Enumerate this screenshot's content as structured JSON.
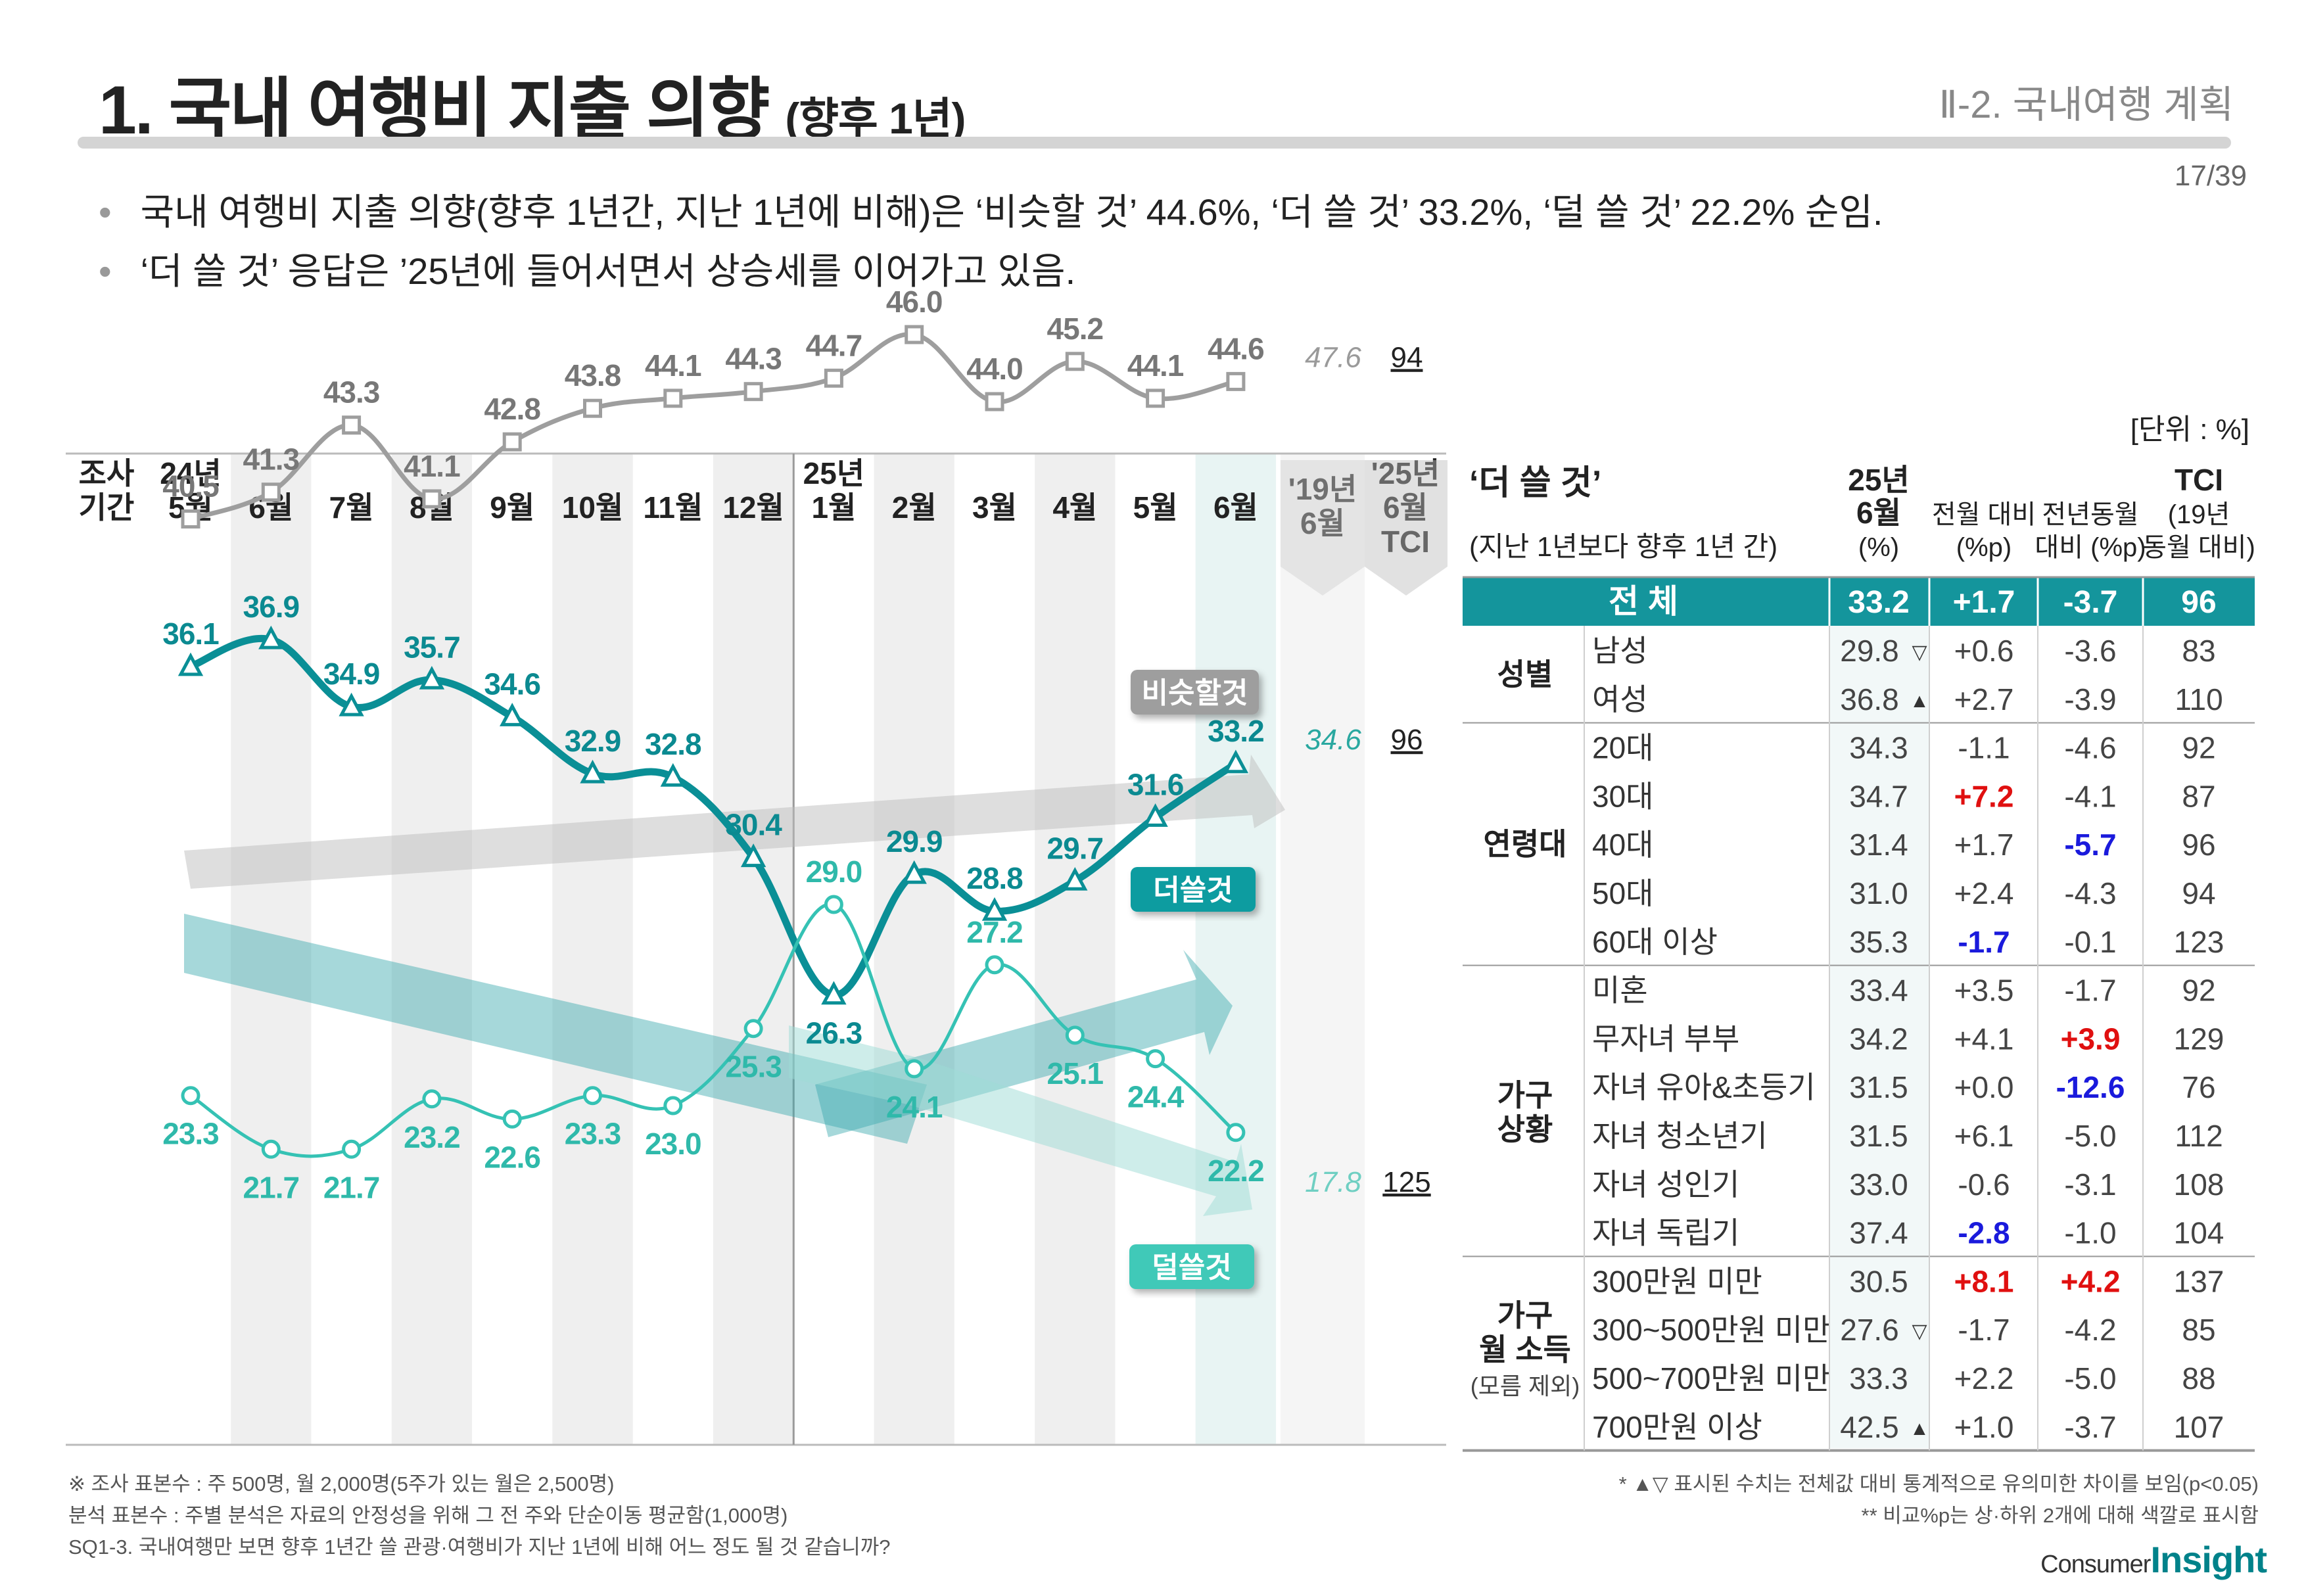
{
  "header": {
    "title": "1. 국내 여행비 지출 의향",
    "title_suffix": "(향후 1년)",
    "section": "Ⅱ-2. 국내여행 계획",
    "page": "17/39"
  },
  "bullets": [
    "국내 여행비 지출 의향(향후 1년간, 지난 1년에 비해)은 ‘비슷할 것’ 44.6%, ‘더 쓸 것’ 33.2%, ‘덜 쓸 것’ 22.2% 순임.",
    "‘더 쓸 것’ 응답은 ’25년에 들어서면서 상승세를 이어가고 있음."
  ],
  "unit": "[단위 : %]",
  "chart_data": {
    "type": "line",
    "period_header": "조사 기간",
    "categories": [
      {
        "year": "24년",
        "month": "5월"
      },
      {
        "year": "",
        "month": "6월"
      },
      {
        "year": "",
        "month": "7월"
      },
      {
        "year": "",
        "month": "8월"
      },
      {
        "year": "",
        "month": "9월"
      },
      {
        "year": "",
        "month": "10월"
      },
      {
        "year": "",
        "month": "11월"
      },
      {
        "year": "",
        "month": "12월"
      },
      {
        "year": "25년",
        "month": "1월"
      },
      {
        "year": "",
        "month": "2월"
      },
      {
        "year": "",
        "month": "3월"
      },
      {
        "year": "",
        "month": "4월"
      },
      {
        "year": "",
        "month": "5월"
      },
      {
        "year": "",
        "month": "6월"
      }
    ],
    "extra_columns": [
      {
        "line1": "'19년",
        "line2": "6월"
      },
      {
        "line1": "'25년",
        "line2": "6월",
        "line3": "TCI"
      }
    ],
    "series": [
      {
        "name": "비슷할것",
        "color": "#9e9e9e",
        "values": [
          40.5,
          41.3,
          43.3,
          41.1,
          42.8,
          43.8,
          44.1,
          44.3,
          44.7,
          46.0,
          44.0,
          45.2,
          44.1,
          44.6
        ],
        "ref_2019": "47.6",
        "tci": "94"
      },
      {
        "name": "더쓸것",
        "color": "#0a8f96",
        "values": [
          36.1,
          36.9,
          34.9,
          35.7,
          34.6,
          32.9,
          32.8,
          30.4,
          26.3,
          29.9,
          28.8,
          29.7,
          31.6,
          33.2
        ],
        "ref_2019": "34.6",
        "tci": "96"
      },
      {
        "name": "덜쓸것",
        "color": "#35c2b4",
        "values": [
          23.3,
          21.7,
          21.7,
          23.2,
          22.6,
          23.3,
          23.0,
          25.3,
          29.0,
          24.1,
          27.2,
          25.1,
          24.4,
          22.2
        ],
        "ref_2019": "17.8",
        "tci": "125"
      }
    ],
    "ylim": [
      15,
      52
    ]
  },
  "table": {
    "title": "‘더 쓸 것’",
    "subtitle": "(지난 1년보다 향후 1년 간)",
    "columns": [
      {
        "l1": "25년",
        "l2": "6월",
        "l3": "(%)"
      },
      {
        "l1": "",
        "l2": "전월 대비",
        "l3": "(%p)"
      },
      {
        "l1": "",
        "l2": "전년동월",
        "l3": "대비 (%p)"
      },
      {
        "l1": "TCI",
        "l2": "(19년",
        "l3": "동월 대비)"
      }
    ],
    "total": {
      "label": "전 체",
      "values": [
        "33.2",
        "+1.7",
        "-3.7",
        "96"
      ]
    },
    "groups": [
      {
        "label": "성별",
        "sub": "",
        "rows": [
          {
            "label": "남성",
            "v": "29.8",
            "mark": "▽",
            "d1": "+0.6",
            "d2": "-3.6",
            "tci": "83",
            "c1": "",
            "c2": ""
          },
          {
            "label": "여성",
            "v": "36.8",
            "mark": "▲",
            "d1": "+2.7",
            "d2": "-3.9",
            "tci": "110",
            "c1": "",
            "c2": ""
          }
        ]
      },
      {
        "label": "연령대",
        "sub": "",
        "rows": [
          {
            "label": "20대",
            "v": "34.3",
            "mark": "",
            "d1": "-1.1",
            "d2": "-4.6",
            "tci": "92",
            "c1": "",
            "c2": ""
          },
          {
            "label": "30대",
            "v": "34.7",
            "mark": "",
            "d1": "+7.2",
            "d2": "-4.1",
            "tci": "87",
            "c1": "red",
            "c2": ""
          },
          {
            "label": "40대",
            "v": "31.4",
            "mark": "",
            "d1": "+1.7",
            "d2": "-5.7",
            "tci": "96",
            "c1": "",
            "c2": "blue"
          },
          {
            "label": "50대",
            "v": "31.0",
            "mark": "",
            "d1": "+2.4",
            "d2": "-4.3",
            "tci": "94",
            "c1": "",
            "c2": ""
          },
          {
            "label": "60대 이상",
            "v": "35.3",
            "mark": "",
            "d1": "-1.7",
            "d2": "-0.1",
            "tci": "123",
            "c1": "blue",
            "c2": ""
          }
        ]
      },
      {
        "label": "가구",
        "label2": "상황",
        "sub": "",
        "rows": [
          {
            "label": "미혼",
            "v": "33.4",
            "mark": "",
            "d1": "+3.5",
            "d2": "-1.7",
            "tci": "92",
            "c1": "",
            "c2": ""
          },
          {
            "label": "무자녀 부부",
            "v": "34.2",
            "mark": "",
            "d1": "+4.1",
            "d2": "+3.9",
            "tci": "129",
            "c1": "",
            "c2": "red"
          },
          {
            "label": "자녀 유아&초등기",
            "v": "31.5",
            "mark": "",
            "d1": "+0.0",
            "d2": "-12.6",
            "tci": "76",
            "c1": "",
            "c2": "blue"
          },
          {
            "label": "자녀 청소년기",
            "v": "31.5",
            "mark": "",
            "d1": "+6.1",
            "d2": "-5.0",
            "tci": "112",
            "c1": "",
            "c2": ""
          },
          {
            "label": "자녀 성인기",
            "v": "33.0",
            "mark": "",
            "d1": "-0.6",
            "d2": "-3.1",
            "tci": "108",
            "c1": "",
            "c2": ""
          },
          {
            "label": "자녀 독립기",
            "v": "37.4",
            "mark": "",
            "d1": "-2.8",
            "d2": "-1.0",
            "tci": "104",
            "c1": "blue",
            "c2": ""
          }
        ]
      },
      {
        "label": "가구",
        "label2": "월 소득",
        "sub": "(모름 제외)",
        "rows": [
          {
            "label": "300만원 미만",
            "v": "30.5",
            "mark": "",
            "d1": "+8.1",
            "d2": "+4.2",
            "tci": "137",
            "c1": "red",
            "c2": "red"
          },
          {
            "label": "300~500만원 미만",
            "v": "27.6",
            "mark": "▽",
            "d1": "-1.7",
            "d2": "-4.2",
            "tci": "85",
            "c1": "",
            "c2": ""
          },
          {
            "label": "500~700만원 미만",
            "v": "33.3",
            "mark": "",
            "d1": "+2.2",
            "d2": "-5.0",
            "tci": "88",
            "c1": "",
            "c2": ""
          },
          {
            "label": "700만원 이상",
            "v": "42.5",
            "mark": "▲",
            "d1": "+1.0",
            "d2": "-3.7",
            "tci": "107",
            "c1": "",
            "c2": ""
          }
        ]
      }
    ]
  },
  "footnotes": {
    "left": [
      "※ 조사 표본수 : 주 500명, 월 2,000명(5주가 있는 월은 2,500명)",
      "  분석 표본수 : 주별 분석은 자료의 안정성을 위해 그 전 주와 단순이동 평균함(1,000명)",
      "SQ1-3. 국내여행만 보면 향후 1년간 쓸 관광·여행비가 지난 1년에 비해 어느 정도 될 것 같습니까?"
    ],
    "right": [
      "* ▲▽ 표시된 수치는 전체값 대비 통계적으로 유의미한 차이를 보임(p<0.05)",
      "** 비교%p는 상·하위 2개에 대해 색깔로 표시함"
    ]
  },
  "logo": {
    "consumer": "Consumer",
    "insight": "Insight"
  }
}
